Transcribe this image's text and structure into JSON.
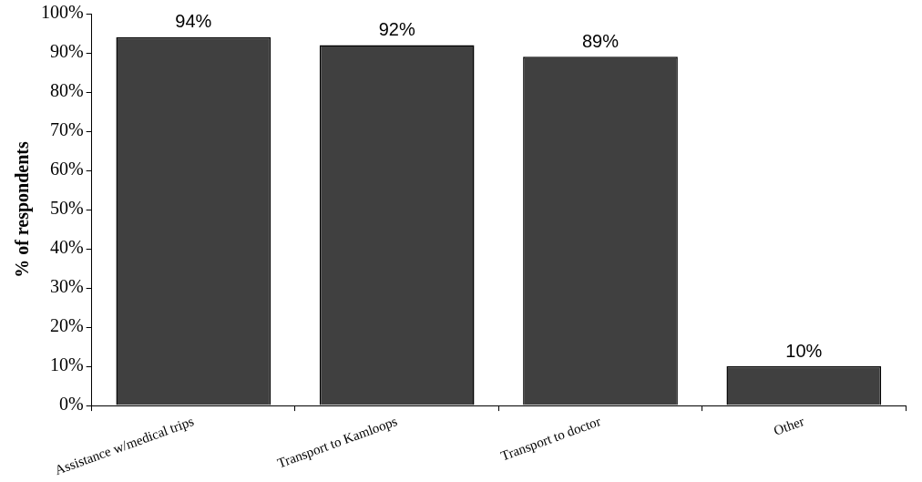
{
  "chart_data": {
    "type": "bar",
    "ylabel": "% of respondents",
    "categories": [
      "Assistance w/medical trips",
      "Transport to Kamloops",
      "Transport to doctor",
      "Other"
    ],
    "values": [
      94,
      92,
      89,
      10
    ],
    "value_labels": [
      "94%",
      "92%",
      "89%",
      "10%"
    ],
    "color": "#404040",
    "ylim": [
      0,
      100
    ],
    "yticks": [
      {
        "value": 0,
        "label": "0%"
      },
      {
        "value": 10,
        "label": "10%"
      },
      {
        "value": 20,
        "label": "20%"
      },
      {
        "value": 30,
        "label": "30%"
      },
      {
        "value": 40,
        "label": "40%"
      },
      {
        "value": 50,
        "label": "50%"
      },
      {
        "value": 60,
        "label": "60%"
      },
      {
        "value": 70,
        "label": "70%"
      },
      {
        "value": 80,
        "label": "80%"
      },
      {
        "value": 90,
        "label": "90%"
      },
      {
        "value": 100,
        "label": "100%"
      }
    ],
    "grid": false,
    "legend": false
  }
}
